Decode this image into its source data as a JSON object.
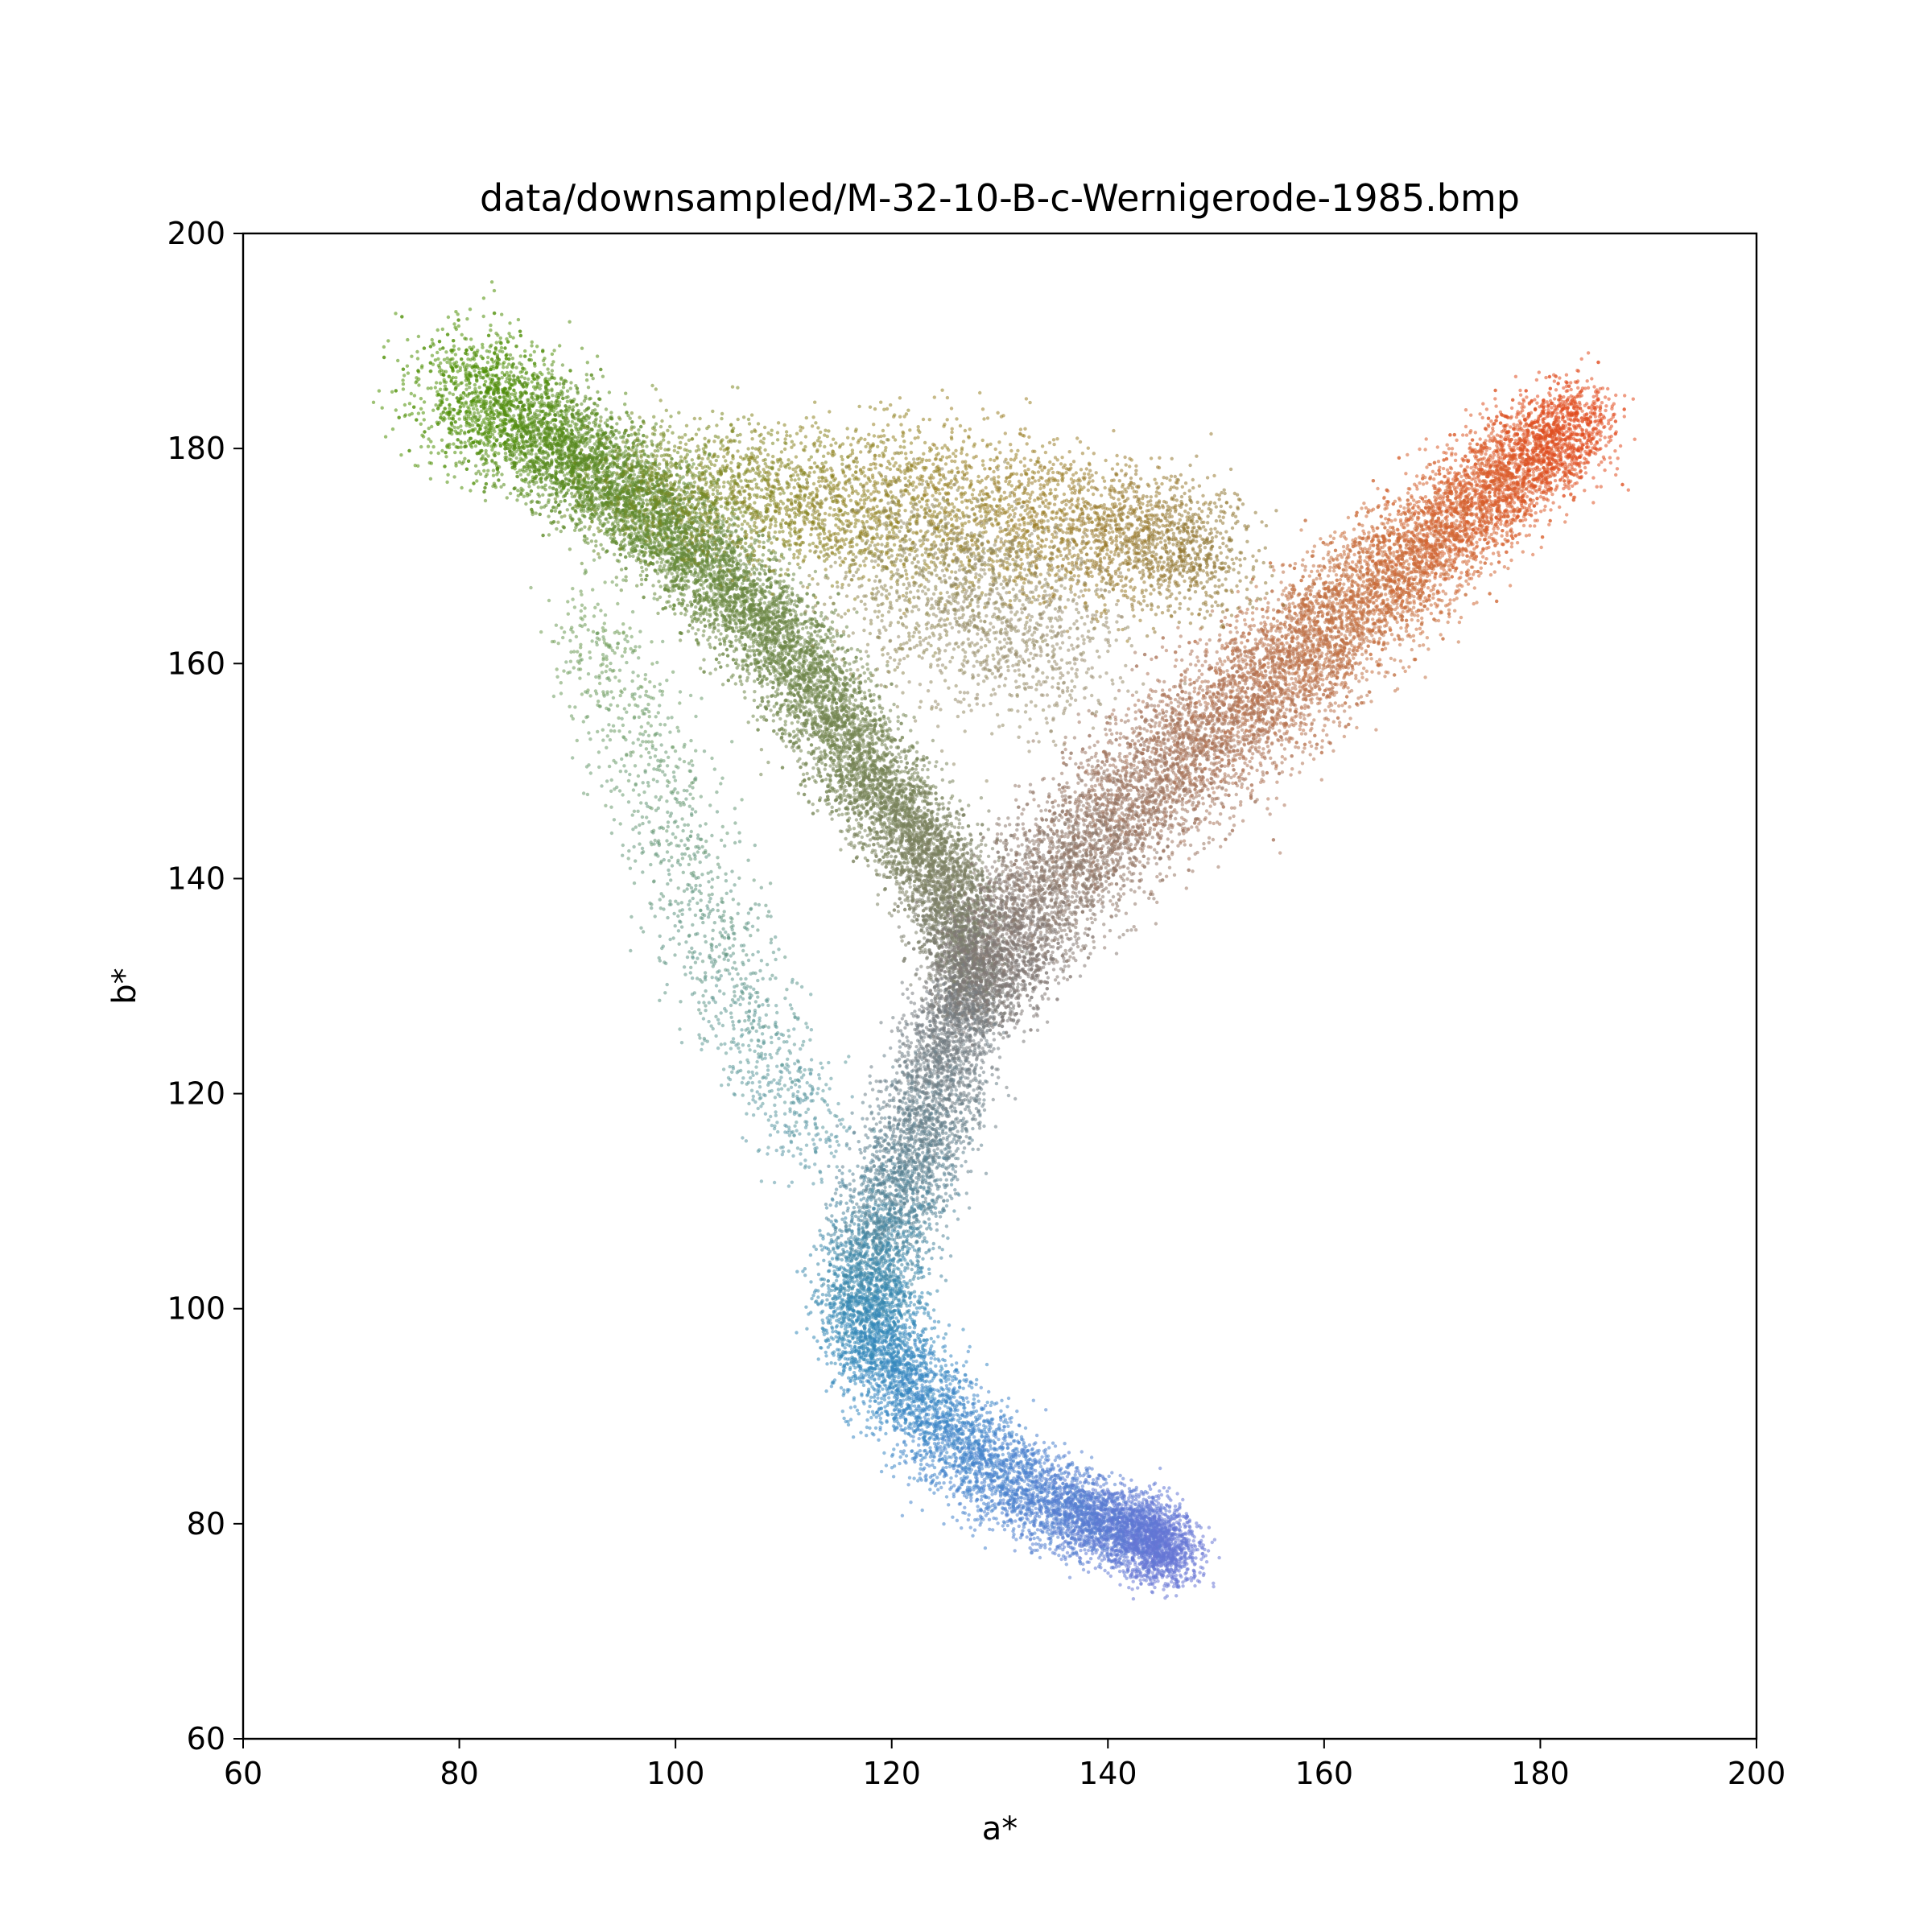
{
  "chart_data": {
    "type": "scatter",
    "title": "data/downsampled/M-32-10-B-c-Wernigerode-1985.bmp",
    "xlabel": "a*",
    "ylabel": "b*",
    "xlim": [
      60,
      200
    ],
    "ylim": [
      60,
      200
    ],
    "xticks": [
      60,
      80,
      100,
      120,
      140,
      160,
      180,
      200
    ],
    "yticks": [
      60,
      80,
      100,
      120,
      140,
      160,
      180,
      200
    ],
    "grid": false,
    "legend": "none",
    "clusters": [
      {
        "path": [
          [
            80,
            186
          ],
          [
            90,
            180
          ],
          [
            100,
            172
          ],
          [
            110,
            162
          ],
          [
            118,
            150
          ],
          [
            125,
            140
          ],
          [
            128,
            128
          ]
        ],
        "spread": [
          3.5,
          2.8,
          2.5,
          2.5,
          2.5,
          2.2,
          2.0
        ],
        "count": 13000,
        "colors": [
          "#4c9000",
          "#5a8a22",
          "#658a38",
          "#6e8648",
          "#778556",
          "#7d8064",
          "#7a7a7a"
        ]
      },
      {
        "path": [
          [
            184,
            183
          ],
          [
            175,
            176
          ],
          [
            165,
            167
          ],
          [
            155,
            158
          ],
          [
            145,
            150
          ],
          [
            135,
            140
          ],
          [
            128,
            130
          ]
        ],
        "spread": [
          2.2,
          2.6,
          3.0,
          3.2,
          3.5,
          3.2,
          2.6
        ],
        "count": 12000,
        "colors": [
          "#e24a1e",
          "#d95e2c",
          "#c7703e",
          "#b87452",
          "#a27660",
          "#8c7a6e",
          "#7c7878"
        ]
      },
      {
        "path": [
          [
            95,
            177
          ],
          [
            108,
            176
          ],
          [
            120,
            175
          ],
          [
            132,
            174
          ],
          [
            142,
            172
          ],
          [
            150,
            170
          ]
        ],
        "spread": [
          3.0,
          3.5,
          4.0,
          4.0,
          3.5,
          3.0
        ],
        "count": 4500,
        "colors": [
          "#6e8a20",
          "#858520",
          "#948222",
          "#9c8028",
          "#9a7a30",
          "#8e7838"
        ]
      },
      {
        "path": [
          [
            120,
            170
          ],
          [
            128,
            165
          ],
          [
            135,
            162
          ]
        ],
        "spread": [
          4.5,
          5.0,
          4.5
        ],
        "count": 1500,
        "colors": [
          "#8d8548",
          "#958c66",
          "#9a8c70"
        ]
      },
      {
        "path": [
          [
            126,
            128
          ],
          [
            124,
            120
          ],
          [
            121,
            112
          ],
          [
            118,
            104
          ],
          [
            118,
            98
          ],
          [
            122,
            92
          ],
          [
            128,
            86
          ],
          [
            135,
            82
          ],
          [
            140,
            80
          ],
          [
            144,
            79
          ],
          [
            146,
            77
          ]
        ],
        "spread": [
          2.0,
          2.5,
          2.5,
          2.5,
          2.3,
          2.5,
          2.5,
          2.2,
          2.0,
          1.8,
          1.8
        ],
        "count": 10000,
        "colors": [
          "#7a7c80",
          "#6e8088",
          "#5a8494",
          "#3e88a8",
          "#3288b8",
          "#3a88c4",
          "#4484cc",
          "#5280d0",
          "#5c7ad2",
          "#6277d6",
          "#6a76d6"
        ]
      },
      {
        "path": [
          [
            92,
            165
          ],
          [
            98,
            150
          ],
          [
            103,
            136
          ],
          [
            108,
            125
          ],
          [
            113,
            115
          ]
        ],
        "spread": [
          2.5,
          2.8,
          2.8,
          2.5,
          2.5
        ],
        "count": 1300,
        "colors": [
          "#6e9a50",
          "#6a9a70",
          "#5e9480",
          "#5e9a98",
          "#5a98a8"
        ]
      }
    ]
  }
}
